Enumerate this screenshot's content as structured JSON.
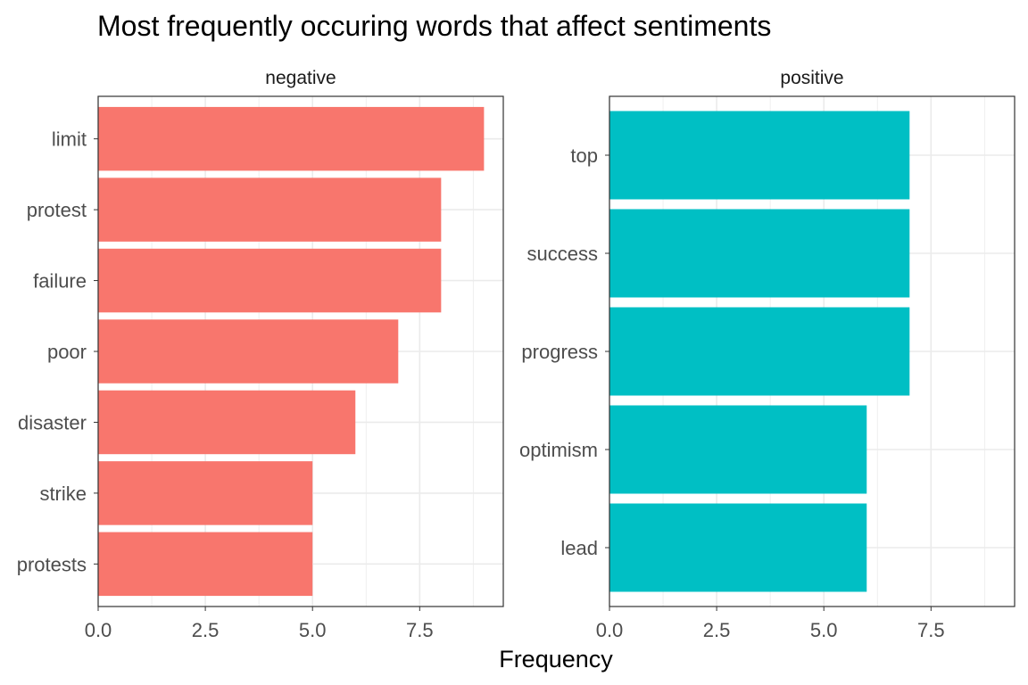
{
  "chart_data": {
    "type": "bar",
    "orientation": "horizontal",
    "title": "Most frequently occuring words that affect sentiments",
    "xlabel": "Frequency",
    "ylabel": "",
    "xlim": [
      0,
      9.45
    ],
    "x_ticks": [
      0,
      2.5,
      5,
      7.5
    ],
    "x_tick_labels": [
      "0.0",
      "2.5",
      "5.0",
      "7.5"
    ],
    "grid": true,
    "legend": "none",
    "facets": [
      {
        "name": "negative",
        "color": "#F8766D",
        "categories": [
          "limit",
          "protest",
          "failure",
          "poor",
          "disaster",
          "strike",
          "protests"
        ],
        "values": [
          9,
          8,
          8,
          7,
          6,
          5,
          5
        ]
      },
      {
        "name": "positive",
        "color": "#00BFC4",
        "categories": [
          "top",
          "success",
          "progress",
          "optimism",
          "lead"
        ],
        "values": [
          7,
          7,
          7,
          6,
          6
        ]
      }
    ]
  }
}
